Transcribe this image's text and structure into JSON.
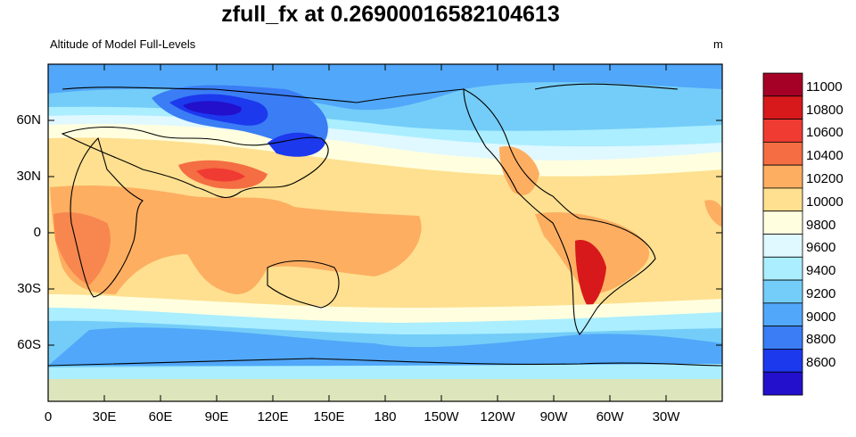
{
  "title": "zfull_fx at 0.26900016582104613",
  "left_subtitle": "Altitude of Model Full-Levels",
  "right_subtitle": "m",
  "map": {
    "projection": "cylindrical-equidistant",
    "lon_range": [
      0,
      360
    ],
    "lat_range": [
      -90,
      90
    ],
    "x_ticks": [
      "0",
      "30E",
      "60E",
      "90E",
      "120E",
      "150E",
      "180",
      "150W",
      "120W",
      "90W",
      "60W",
      "30W"
    ],
    "y_ticks": [
      "60N",
      "30N",
      "0",
      "30S",
      "60S"
    ],
    "y_tick_values": [
      60,
      30,
      0,
      -30,
      -60
    ]
  },
  "colorbar": {
    "levels": [
      "11000",
      "10800",
      "10600",
      "10400",
      "10200",
      "10000",
      "9800",
      "9600",
      "9400",
      "9200",
      "9000",
      "8800",
      "8600"
    ],
    "colors": [
      "#a50026",
      "#d7191c",
      "#f03b33",
      "#f46d43",
      "#fdae61",
      "#fee090",
      "#ffffe0",
      "#e0f8ff",
      "#aaeeff",
      "#74cdf8",
      "#51a7f9",
      "#3a7df5",
      "#1c39ee",
      "#2310cc"
    ]
  }
}
